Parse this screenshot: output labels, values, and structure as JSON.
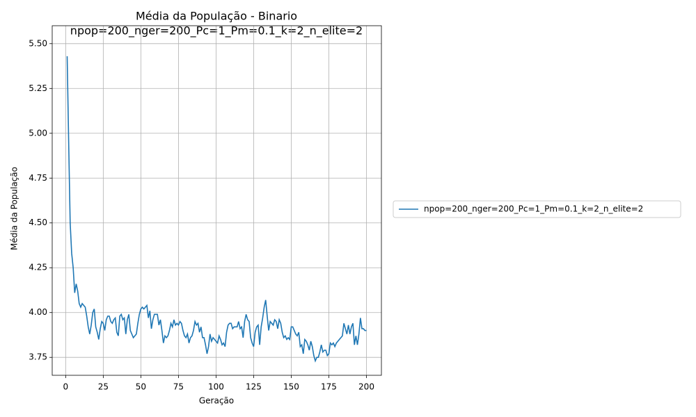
{
  "chart_data": {
    "type": "line",
    "title": "Média da População - Binario",
    "subtitle": "npop=200_nger=200_Pc=1_Pm=0.1_k=2_n_elite=2",
    "xlabel": "Geração",
    "ylabel": "Média da População",
    "x": [
      1,
      2,
      3,
      4,
      5,
      6,
      7,
      8,
      9,
      10,
      11,
      12,
      13,
      14,
      15,
      16,
      17,
      18,
      19,
      20,
      21,
      22,
      23,
      24,
      25,
      26,
      27,
      28,
      29,
      30,
      31,
      32,
      33,
      34,
      35,
      36,
      37,
      38,
      39,
      40,
      41,
      42,
      43,
      44,
      45,
      46,
      47,
      48,
      49,
      50,
      51,
      52,
      53,
      54,
      55,
      56,
      57,
      58,
      59,
      60,
      61,
      62,
      63,
      64,
      65,
      66,
      67,
      68,
      69,
      70,
      71,
      72,
      73,
      74,
      75,
      76,
      77,
      78,
      79,
      80,
      81,
      82,
      83,
      84,
      85,
      86,
      87,
      88,
      89,
      90,
      91,
      92,
      93,
      94,
      95,
      96,
      97,
      98,
      99,
      100,
      101,
      102,
      103,
      104,
      105,
      106,
      107,
      108,
      109,
      110,
      111,
      112,
      113,
      114,
      115,
      116,
      117,
      118,
      119,
      120,
      121,
      122,
      123,
      124,
      125,
      126,
      127,
      128,
      129,
      130,
      131,
      132,
      133,
      134,
      135,
      136,
      137,
      138,
      139,
      140,
      141,
      142,
      143,
      144,
      145,
      146,
      147,
      148,
      149,
      150,
      151,
      152,
      153,
      154,
      155,
      156,
      157,
      158,
      159,
      160,
      161,
      162,
      163,
      164,
      165,
      166,
      167,
      168,
      169,
      170,
      171,
      172,
      173,
      174,
      175,
      176,
      177,
      178,
      179,
      180,
      181,
      182,
      183,
      184,
      185,
      186,
      187,
      188,
      189,
      190,
      191,
      192,
      193,
      194,
      195,
      196,
      197,
      198,
      199,
      200
    ],
    "series": [
      {
        "name": "npop=200_nger=200_Pc=1_Pm=0.1_k=2_n_elite=2",
        "color": "#1f77b4",
        "values": [
          5.43,
          4.95,
          4.5,
          4.33,
          4.25,
          4.11,
          4.16,
          4.12,
          4.05,
          4.03,
          4.05,
          4.04,
          4.03,
          3.98,
          3.92,
          3.88,
          3.93,
          4.0,
          4.02,
          3.92,
          3.89,
          3.85,
          3.91,
          3.95,
          3.94,
          3.9,
          3.96,
          3.98,
          3.98,
          3.95,
          3.94,
          3.96,
          3.97,
          3.89,
          3.87,
          3.98,
          3.99,
          3.96,
          3.97,
          3.88,
          3.96,
          3.99,
          3.9,
          3.88,
          3.86,
          3.87,
          3.88,
          3.94,
          3.99,
          4.02,
          4.03,
          4.02,
          4.03,
          4.04,
          3.97,
          4.01,
          3.91,
          3.96,
          3.99,
          3.99,
          3.99,
          3.93,
          3.96,
          3.9,
          3.83,
          3.87,
          3.86,
          3.87,
          3.9,
          3.94,
          3.92,
          3.96,
          3.93,
          3.94,
          3.93,
          3.95,
          3.94,
          3.9,
          3.87,
          3.86,
          3.88,
          3.83,
          3.86,
          3.87,
          3.9,
          3.95,
          3.93,
          3.94,
          3.89,
          3.92,
          3.86,
          3.86,
          3.82,
          3.77,
          3.81,
          3.88,
          3.84,
          3.86,
          3.85,
          3.84,
          3.83,
          3.87,
          3.85,
          3.82,
          3.83,
          3.81,
          3.89,
          3.93,
          3.94,
          3.94,
          3.91,
          3.92,
          3.92,
          3.92,
          3.95,
          3.91,
          3.92,
          3.86,
          3.95,
          3.99,
          3.96,
          3.95,
          3.86,
          3.83,
          3.81,
          3.89,
          3.92,
          3.93,
          3.82,
          3.92,
          3.97,
          4.03,
          4.07,
          3.98,
          3.9,
          3.95,
          3.94,
          3.93,
          3.96,
          3.95,
          3.91,
          3.96,
          3.94,
          3.89,
          3.86,
          3.87,
          3.85,
          3.86,
          3.85,
          3.92,
          3.92,
          3.9,
          3.88,
          3.87,
          3.89,
          3.81,
          3.82,
          3.77,
          3.85,
          3.84,
          3.82,
          3.79,
          3.84,
          3.81,
          3.76,
          3.73,
          3.75,
          3.75,
          3.78,
          3.82,
          3.78,
          3.79,
          3.79,
          3.76,
          3.77,
          3.83,
          3.82,
          3.83,
          3.81,
          3.83,
          3.84,
          3.85,
          3.86,
          3.87,
          3.94,
          3.91,
          3.88,
          3.93,
          3.88,
          3.92,
          3.94,
          3.82,
          3.87,
          3.82,
          3.88,
          3.97,
          3.91,
          3.91,
          3.9,
          3.9
        ]
      }
    ],
    "xlim": [
      -8.95,
      209.95
    ],
    "ylim": [
      3.65,
      5.6
    ],
    "xticks": [
      0,
      25,
      50,
      75,
      100,
      125,
      150,
      175,
      200
    ],
    "yticks": [
      3.75,
      {
        "value": 4,
        "label": "4.00"
      },
      4.25,
      {
        "value": 4.5,
        "label": "4.50"
      },
      4.75,
      {
        "value": 5,
        "label": "5.00"
      },
      5.25,
      {
        "value": 5.5,
        "label": "5.50"
      }
    ],
    "grid": true,
    "legend": "right"
  }
}
